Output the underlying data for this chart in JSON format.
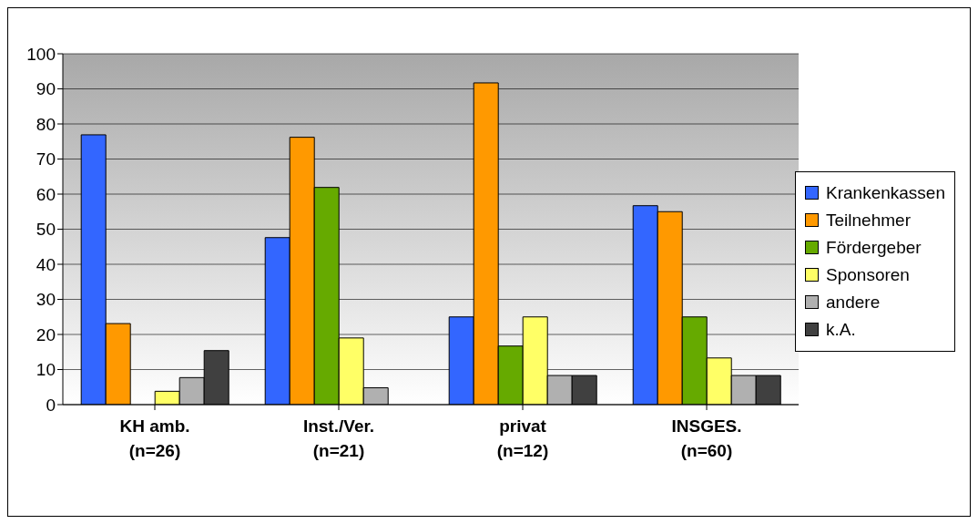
{
  "chart_data": {
    "type": "bar",
    "categories": [
      "KH amb.\n(n=26)",
      "Inst./Ver.\n(n=21)",
      "privat\n(n=12)",
      "INSGES.\n(n=60)"
    ],
    "series": [
      {
        "name": "Krankenkassen",
        "color": "#3366ff",
        "values": [
          76.9,
          47.6,
          25,
          56.7
        ]
      },
      {
        "name": "Teilnehmer",
        "color": "#ff9900",
        "values": [
          23.1,
          76.2,
          91.7,
          55
        ]
      },
      {
        "name": "Fördergeber",
        "color": "#66aa00",
        "values": [
          0,
          61.9,
          16.7,
          25
        ]
      },
      {
        "name": "Sponsoren",
        "color": "#ffff66",
        "values": [
          3.8,
          19,
          25,
          13.3
        ]
      },
      {
        "name": "andere",
        "color": "#b0b0b0",
        "values": [
          7.7,
          4.8,
          8.3,
          8.3
        ]
      },
      {
        "name": "k.A.",
        "color": "#404040",
        "values": [
          15.4,
          0,
          8.3,
          8.3
        ]
      }
    ],
    "ylim": [
      0,
      100
    ],
    "yticks": [
      0,
      10,
      20,
      30,
      40,
      50,
      60,
      70,
      80,
      90,
      100
    ],
    "grid": "y",
    "legend": "right"
  }
}
